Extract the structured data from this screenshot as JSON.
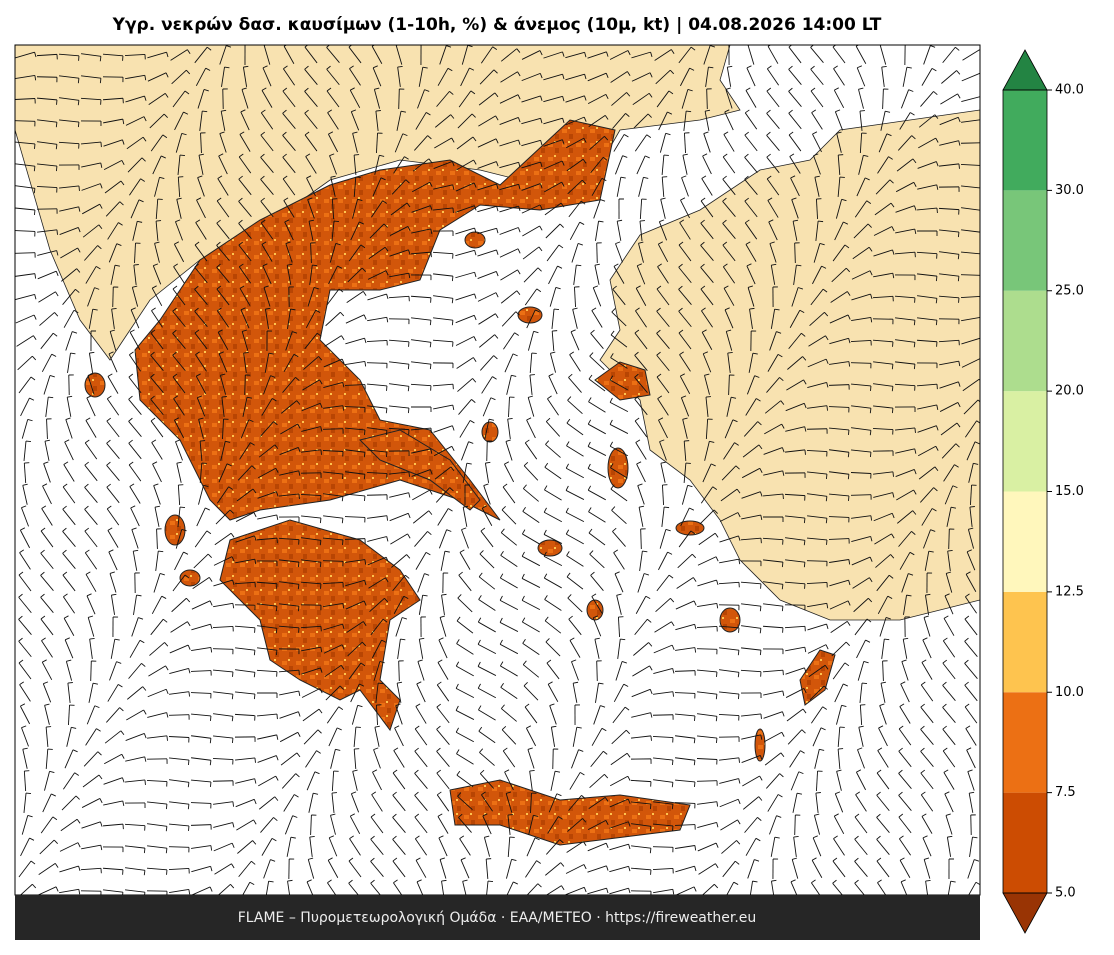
{
  "title": "Υγρ. νεκρών δασ. καυσίμων (1-10h, %) & άνεμος (10μ, kt)  |  04.08.2026 14:00 LT",
  "footer": "FLAME – Πυρομετεωρολογική Ομάδα · ΕΑΑ/METEO · https://fireweather.eu",
  "colorbar": {
    "ticks": [
      {
        "value": 5,
        "label": "5.0"
      },
      7.5,
      {
        "value": 10,
        "label": "10.0"
      },
      12.5,
      {
        "value": 15,
        "label": "15.0"
      },
      {
        "value": 20,
        "label": "20.0"
      },
      {
        "value": 25,
        "label": "25.0"
      },
      {
        "value": 30,
        "label": "30.0"
      },
      {
        "value": 40,
        "label": "40.0"
      }
    ],
    "colors": [
      "#cc4c02",
      "#ec7014",
      "#fec44f",
      "#fff7bc",
      "#d9f0a3",
      "#addd8e",
      "#78c679",
      "#41ab5d"
    ],
    "under_color": "#993404",
    "over_color": "#238443"
  }
}
